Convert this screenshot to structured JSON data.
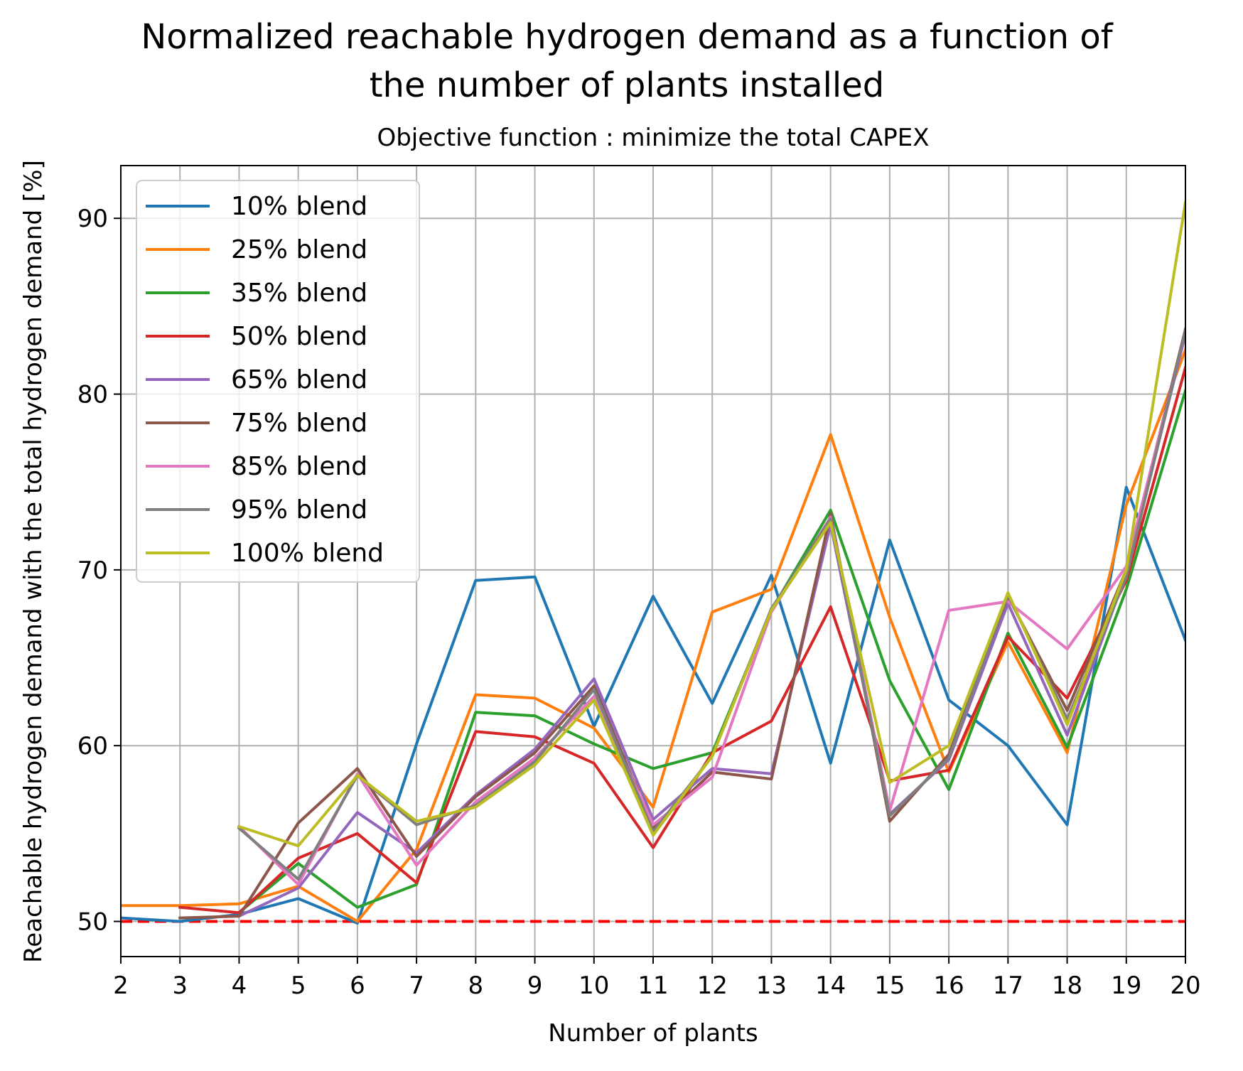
{
  "chart_data": {
    "type": "line",
    "title_lines": [
      "Normalized reachable hydrogen demand as a function of",
      "the number of plants installed"
    ],
    "subtitle": "Objective function : minimize the total CAPEX",
    "xlabel": "Number of plants",
    "ylabel": "Reachable hydrogen demand with the total hydrogen demand [%]",
    "xlim": [
      2,
      20
    ],
    "ylim": [
      48,
      93
    ],
    "xticks": [
      2,
      3,
      4,
      5,
      6,
      7,
      8,
      9,
      10,
      11,
      12,
      13,
      14,
      15,
      16,
      17,
      18,
      19,
      20
    ],
    "yticks": [
      50,
      60,
      70,
      80,
      90
    ],
    "grid": true,
    "legend_position": "upper-left",
    "reference_line": {
      "y": 50,
      "color": "#ff0000",
      "style": "dashed"
    },
    "series": [
      {
        "name": "10% blend",
        "color": "#1f77b4",
        "x": [
          2,
          3,
          4,
          5,
          6,
          7,
          8,
          9,
          10,
          11,
          12,
          13,
          14,
          15,
          16,
          17,
          18,
          19,
          20
        ],
        "y": [
          50.2,
          50.0,
          50.4,
          51.3,
          49.9,
          60.1,
          69.4,
          69.6,
          61.1,
          68.5,
          62.4,
          69.7,
          59.0,
          71.7,
          62.6,
          60.0,
          55.5,
          74.7,
          66.0
        ]
      },
      {
        "name": "25% blend",
        "color": "#ff7f0e",
        "x": [
          2,
          3,
          4,
          5,
          6,
          7,
          8,
          9,
          10,
          11,
          12,
          13,
          14,
          15,
          16,
          17,
          18,
          19,
          20
        ],
        "y": [
          50.9,
          50.9,
          51.0,
          52.0,
          50.0,
          54.1,
          62.9,
          62.7,
          61.0,
          56.5,
          67.6,
          68.9,
          77.7,
          67.3,
          58.5,
          65.9,
          59.6,
          73.7,
          82.5
        ]
      },
      {
        "name": "35% blend",
        "color": "#2ca02c",
        "x": [
          4,
          5,
          6,
          7,
          8,
          9,
          10,
          11,
          12,
          13,
          14,
          15,
          16,
          17,
          18,
          19,
          20
        ],
        "y": [
          50.5,
          53.3,
          50.8,
          52.1,
          61.9,
          61.7,
          60.1,
          58.7,
          59.6,
          67.7,
          73.4,
          63.7,
          57.5,
          66.4,
          59.9,
          68.9,
          80.2
        ]
      },
      {
        "name": "50% blend",
        "color": "#d62728",
        "x": [
          3,
          4,
          5,
          6,
          7,
          8,
          9,
          10,
          11,
          12,
          13,
          14,
          15,
          16,
          17,
          18,
          19,
          20
        ],
        "y": [
          50.8,
          50.5,
          53.6,
          55.0,
          52.2,
          60.8,
          60.5,
          59.0,
          54.2,
          59.6,
          61.4,
          67.9,
          58.0,
          58.6,
          66.2,
          62.7,
          69.4,
          81.5
        ]
      },
      {
        "name": "65% blend",
        "color": "#9467bd",
        "x": [
          4,
          5,
          6,
          7,
          8,
          9,
          10,
          11,
          12,
          13,
          14,
          15,
          16,
          17,
          18,
          19,
          20
        ],
        "y": [
          50.3,
          51.9,
          56.2,
          53.9,
          57.2,
          59.8,
          63.8,
          55.8,
          58.7,
          58.4,
          72.6,
          56.1,
          59.2,
          68.1,
          60.6,
          69.8,
          83.4
        ]
      },
      {
        "name": "75% blend",
        "color": "#8c564b",
        "x": [
          3,
          4,
          5,
          6,
          7,
          8,
          9,
          10,
          11,
          12,
          13,
          14,
          15,
          16,
          17,
          18,
          19,
          20
        ],
        "y": [
          50.2,
          50.3,
          55.6,
          58.7,
          53.7,
          57.1,
          59.6,
          63.4,
          55.3,
          58.5,
          58.1,
          73.2,
          55.7,
          59.5,
          68.5,
          62.0,
          70.0,
          83.7
        ]
      },
      {
        "name": "85% blend",
        "color": "#e377c2",
        "x": [
          4,
          5,
          6,
          7,
          8,
          9,
          10,
          11,
          12,
          13,
          14,
          15,
          16,
          17,
          18,
          19,
          20
        ],
        "y": [
          55.4,
          52.1,
          58.4,
          53.2,
          56.8,
          59.3,
          62.8,
          55.5,
          58.2,
          67.6,
          73.0,
          56.3,
          67.7,
          68.2,
          65.5,
          70.2,
          83.5
        ]
      },
      {
        "name": "95% blend",
        "color": "#7f7f7f",
        "x": [
          4,
          5,
          6,
          7,
          8,
          9,
          10,
          11,
          12,
          13,
          14,
          15,
          16,
          17,
          18,
          19,
          20
        ],
        "y": [
          55.3,
          52.4,
          58.3,
          55.5,
          56.6,
          59.1,
          63.2,
          55.1,
          59.4,
          67.8,
          72.9,
          56.0,
          59.3,
          68.6,
          61.5,
          69.6,
          83.6
        ]
      },
      {
        "name": "100% blend",
        "color": "#bcbd22",
        "x": [
          4,
          5,
          6,
          7,
          8,
          9,
          10,
          11,
          12,
          13,
          14,
          15,
          16,
          17,
          18,
          19,
          20
        ],
        "y": [
          55.4,
          54.3,
          58.3,
          55.7,
          56.5,
          58.9,
          62.6,
          54.9,
          59.4,
          67.7,
          72.7,
          57.9,
          60.0,
          68.7,
          61.2,
          70.0,
          90.9
        ]
      }
    ]
  }
}
